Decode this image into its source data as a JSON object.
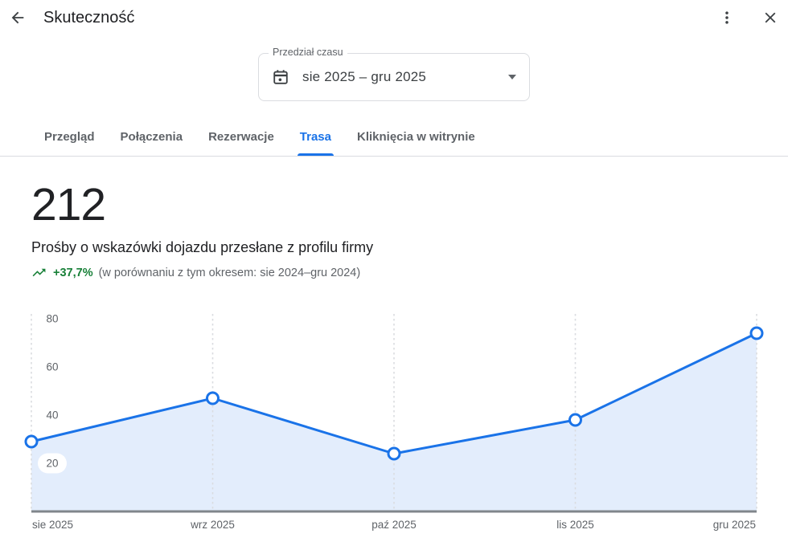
{
  "header": {
    "title": "Skuteczność"
  },
  "icons": {
    "back": "arrow-left",
    "menu": "kebab-vertical",
    "close": "x",
    "calendar": "calendar",
    "trend": "trending-up",
    "caret": "triangle-down"
  },
  "date_range": {
    "label": "Przedział czasu",
    "value": "sie 2025 – gru 2025"
  },
  "tabs": {
    "items": [
      {
        "label": "Przegląd",
        "active": false
      },
      {
        "label": "Połączenia",
        "active": false
      },
      {
        "label": "Rezerwacje",
        "active": false
      },
      {
        "label": "Trasa",
        "active": true
      },
      {
        "label": "Kliknięcia w witrynie",
        "active": false
      }
    ]
  },
  "metric": {
    "value": "212",
    "description": "Prośby o wskazówki dojazdu przesłane z profilu firmy",
    "trend": {
      "delta": "+37,7%",
      "comparison": "(w porównaniu z tym okresem: sie 2024–gru 2024)"
    }
  },
  "chart_data": {
    "type": "area",
    "categories": [
      "sie 2025",
      "wrz 2025",
      "paź 2025",
      "lis 2025",
      "gru 2025"
    ],
    "values": [
      29,
      47,
      24,
      38,
      74
    ],
    "title": "",
    "xlabel": "",
    "ylabel": "",
    "ylim": [
      0,
      80
    ],
    "yticks": [
      20,
      40,
      60,
      80
    ],
    "grid": "vertical-dashed",
    "legend": "none",
    "colors": {
      "line": "#1a73e8",
      "area": "#e3edfc",
      "marker_fill": "#ffffff",
      "grid": "#dadce0",
      "axis_text": "#5f6368",
      "baseline": "#80868b"
    }
  },
  "colors": {
    "accent": "#1a73e8",
    "positive": "#188038",
    "text_primary": "#202124",
    "text_secondary": "#5f6368",
    "divider": "#dadce0"
  }
}
